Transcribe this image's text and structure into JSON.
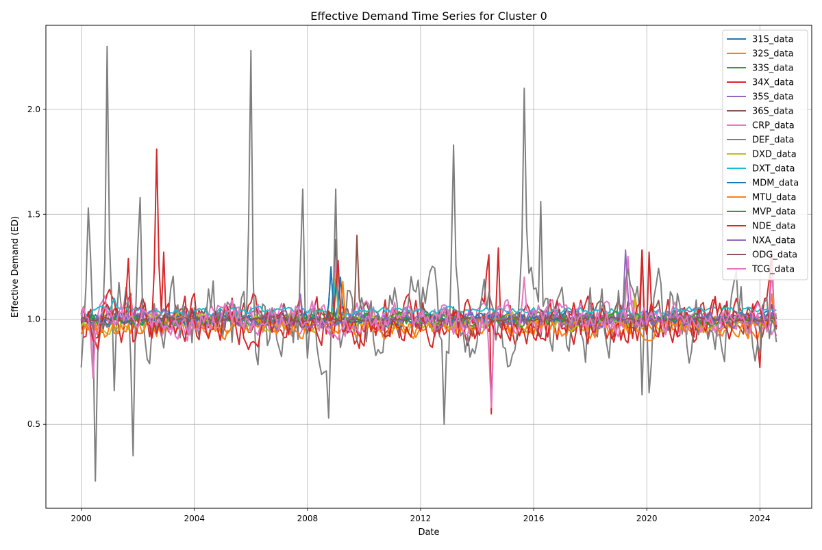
{
  "chart_data": {
    "type": "line",
    "title": "Effective Demand Time Series for Cluster 0",
    "xlabel": "Date",
    "ylabel": "Effective Demand (ED)",
    "x_range": [
      "2000-01",
      "2024-08"
    ],
    "xlim": [
      "1998-10",
      "2025-11"
    ],
    "ylim": [
      0.1,
      2.4
    ],
    "x_ticks": [
      "2000",
      "2004",
      "2008",
      "2012",
      "2016",
      "2020",
      "2024"
    ],
    "y_ticks": [
      "0.5",
      "1.0",
      "1.5",
      "2.0"
    ],
    "grid": true,
    "legend_position": "upper right",
    "series": [
      {
        "name": "31S_data",
        "color": "#1f77b4",
        "level": 1.0,
        "noise": 0.025,
        "peaks": [
          [
            "2008-11",
            1.25
          ],
          [
            "2009-03",
            1.2
          ]
        ]
      },
      {
        "name": "32S_data",
        "color": "#ff7f0e",
        "level": 0.97,
        "noise": 0.04,
        "peaks": [
          [
            "2009-01",
            1.22
          ],
          [
            "2019-08",
            1.12
          ],
          [
            "2024-06",
            1.12
          ]
        ]
      },
      {
        "name": "33S_data",
        "color": "#2ca02c",
        "level": 1.0,
        "noise": 0.02,
        "peaks": [
          [
            "2008-06",
            1.05
          ]
        ]
      },
      {
        "name": "34X_data",
        "color": "#d62728",
        "level": 1.0,
        "noise": 0.09,
        "peaks": [
          [
            "2002-09",
            1.81
          ],
          [
            "2002-12",
            1.32
          ],
          [
            "2014-06",
            1.42
          ],
          [
            "2014-07",
            0.55
          ],
          [
            "2014-10",
            1.34
          ],
          [
            "2019-11",
            1.33
          ],
          [
            "2020-02",
            1.32
          ],
          [
            "2024-01",
            0.77
          ],
          [
            "2024-06",
            1.33
          ]
        ]
      },
      {
        "name": "35S_data",
        "color": "#9467bd",
        "level": 1.0,
        "noise": 0.035,
        "peaks": [
          [
            "2019-04",
            1.33
          ]
        ]
      },
      {
        "name": "36S_data",
        "color": "#8c564b",
        "level": 1.0,
        "noise": 0.06,
        "peaks": [
          [
            "2009-01",
            1.38
          ],
          [
            "2009-10",
            1.4
          ]
        ]
      },
      {
        "name": "CRP_data",
        "color": "#e377c2",
        "level": 1.0,
        "noise": 0.07,
        "peaks": [
          [
            "2000-06",
            0.72
          ],
          [
            "2009-01",
            1.28
          ],
          [
            "2019-05",
            1.3
          ]
        ]
      },
      {
        "name": "DEF_data",
        "color": "#7f7f7f",
        "level": 1.0,
        "noise": 0.16,
        "peaks": [
          [
            "2000-01",
            0.77
          ],
          [
            "2000-04",
            1.53
          ],
          [
            "2000-07",
            0.23
          ],
          [
            "2000-12",
            2.3
          ],
          [
            "2001-03",
            0.66
          ],
          [
            "2001-11",
            0.35
          ],
          [
            "2002-02",
            1.58
          ],
          [
            "2006-01",
            2.28
          ],
          [
            "2007-11",
            1.62
          ],
          [
            "2008-10",
            0.53
          ],
          [
            "2009-01",
            1.62
          ],
          [
            "2012-11",
            0.5
          ],
          [
            "2013-03",
            1.83
          ],
          [
            "2015-09",
            2.1
          ],
          [
            "2016-04",
            1.56
          ],
          [
            "2019-11",
            0.64
          ],
          [
            "2020-02",
            0.65
          ]
        ]
      },
      {
        "name": "DXD_data",
        "color": "#bcbd22",
        "level": 0.99,
        "noise": 0.035,
        "peaks": [
          [
            "2009-01",
            1.22
          ],
          [
            "2019-08",
            1.1
          ]
        ]
      },
      {
        "name": "DXT_data",
        "color": "#17becf",
        "level": 1.04,
        "noise": 0.015,
        "peaks": [
          [
            "2001-03",
            1.1
          ],
          [
            "2009-01",
            1.19
          ]
        ]
      },
      {
        "name": "MDM_data",
        "color": "#1f77b4",
        "level": 1.0,
        "noise": 0.025,
        "peaks": [
          [
            "2008-11",
            1.24
          ]
        ]
      },
      {
        "name": "MTU_data",
        "color": "#ff7f0e",
        "level": 0.96,
        "noise": 0.04,
        "peaks": [
          [
            "2009-04",
            1.18
          ]
        ]
      },
      {
        "name": "MVP_data",
        "color": "#2ca02c",
        "level": 1.0,
        "noise": 0.025,
        "peaks": []
      },
      {
        "name": "NDE_data",
        "color": "#d62728",
        "level": 0.98,
        "noise": 0.08,
        "peaks": [
          [
            "2001-09",
            1.29
          ],
          [
            "2009-02",
            1.28
          ],
          [
            "2019-11",
            1.33
          ],
          [
            "2024-06",
            1.31
          ]
        ]
      },
      {
        "name": "NXA_data",
        "color": "#9467bd",
        "level": 1.0,
        "noise": 0.035,
        "peaks": [
          [
            "2007-10",
            1.12
          ]
        ]
      },
      {
        "name": "ODG_data",
        "color": "#8c564b",
        "level": 1.0,
        "noise": 0.008,
        "peaks": []
      },
      {
        "name": "TCG_data",
        "color": "#e377c2",
        "level": 1.0,
        "noise": 0.06,
        "peaks": [
          [
            "2000-06",
            0.72
          ],
          [
            "2014-07",
            0.58
          ],
          [
            "2015-09",
            1.2
          ],
          [
            "2024-06",
            1.25
          ]
        ]
      }
    ]
  }
}
